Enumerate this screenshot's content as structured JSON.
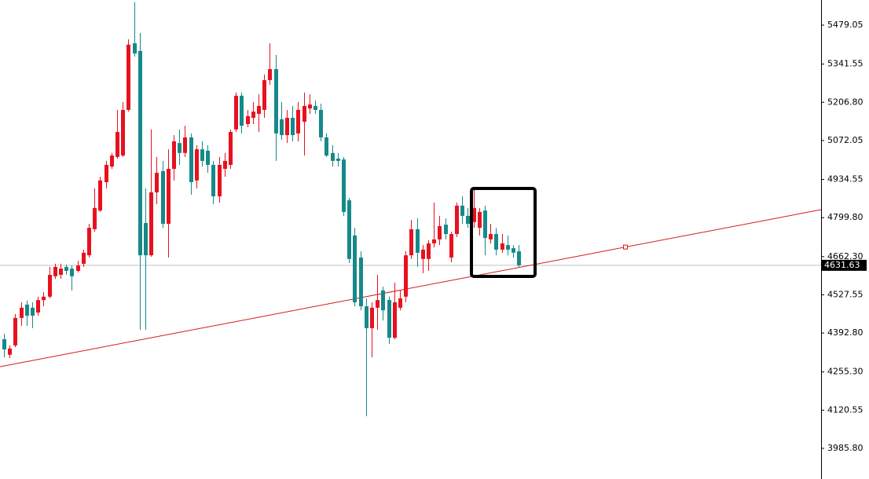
{
  "chart_data": {
    "type": "candlestick",
    "open": [
      4371,
      4316,
      4349,
      4446,
      4493,
      4482,
      4465,
      4509,
      4521,
      4593,
      4598,
      4626,
      4620,
      4612,
      4637,
      4667,
      4759,
      4825,
      4925,
      4980,
      5014,
      5019,
      5180,
      5415,
      5388,
      4781,
      4667,
      4889,
      4964,
      4778,
      4972,
      5063,
      5028,
      5083,
      4931,
      5041,
      5036,
      4986,
      4875,
      4972,
      4986,
      5111,
      5230,
      5130,
      5152,
      5166,
      5180,
      5285,
      5324,
      5147,
      5091,
      5152,
      5097,
      5138,
      5185,
      5194,
      5180,
      5083,
      5028,
      5008,
      5005,
      4861,
      4737,
      4659,
      4487,
      4410,
      4482,
      4543,
      4509,
      4376,
      4482,
      4521,
      4667,
      4759,
      4654,
      4654,
      4709,
      4723,
      4775,
      4659,
      4742,
      4842,
      4806,
      4784,
      4764,
      4825,
      4723,
      4742,
      4687,
      4703,
      4692,
      4681
    ],
    "high": [
      4390,
      4349,
      4460,
      4501,
      4507,
      4501,
      4521,
      4537,
      4626,
      4637,
      4637,
      4634,
      4631,
      4648,
      4687,
      4778,
      4903,
      4944,
      5000,
      5028,
      5180,
      5208,
      5429,
      5560,
      5451,
      4903,
      5111,
      5014,
      5000,
      5041,
      5091,
      5111,
      5124,
      5097,
      5055,
      5069,
      5055,
      5000,
      5014,
      5028,
      5111,
      5241,
      5241,
      5180,
      5208,
      5235,
      5305,
      5415,
      5374,
      5208,
      5180,
      5194,
      5208,
      5241,
      5235,
      5213,
      5202,
      5097,
      5055,
      5028,
      5014,
      4870,
      4764,
      4681,
      4515,
      4501,
      4598,
      4556,
      4521,
      4570,
      4543,
      4681,
      4792,
      4797,
      4703,
      4720,
      4853,
      4806,
      4797,
      4750,
      4853,
      4875,
      4834,
      4903,
      4834,
      4842,
      4778,
      4764,
      4742,
      4737,
      4703,
      4703
    ],
    "low": [
      4307,
      4304,
      4343,
      4418,
      4418,
      4410,
      4454,
      4487,
      4515,
      4584,
      4584,
      4598,
      4543,
      4606,
      4626,
      4659,
      4750,
      4820,
      4903,
      4972,
      5008,
      5014,
      5174,
      5368,
      4404,
      4404,
      4662,
      4847,
      4764,
      4659,
      4931,
      4986,
      5014,
      4881,
      4903,
      4980,
      4958,
      4847,
      4853,
      4944,
      4972,
      5102,
      5097,
      5119,
      5130,
      5102,
      5152,
      5269,
      5000,
      5075,
      5063,
      5069,
      5069,
      5019,
      5166,
      5166,
      5069,
      5014,
      4980,
      4980,
      4806,
      4640,
      4487,
      4473,
      4099,
      4307,
      4404,
      4437,
      4354,
      4371,
      4473,
      4501,
      4654,
      4626,
      4604,
      4612,
      4695,
      4703,
      4723,
      4642,
      4731,
      4778,
      4764,
      4764,
      4737,
      4667,
      4709,
      4667,
      4676,
      4667,
      4659,
      4626
    ],
    "close": [
      4335,
      4338,
      4446,
      4482,
      4454,
      4454,
      4509,
      4521,
      4598,
      4626,
      4620,
      4612,
      4593,
      4631,
      4676,
      4764,
      4834,
      4931,
      4986,
      5019,
      5102,
      5180,
      5410,
      5379,
      4667,
      4667,
      4889,
      4958,
      4778,
      4972,
      5069,
      5028,
      5083,
      4925,
      5041,
      5000,
      4986,
      4875,
      4986,
      5000,
      5102,
      5230,
      5124,
      5158,
      5174,
      5194,
      5285,
      5324,
      5097,
      5091,
      5152,
      5091,
      5180,
      5194,
      5199,
      5180,
      5083,
      5019,
      5000,
      5000,
      4820,
      4654,
      4501,
      4487,
      4410,
      4482,
      4509,
      4473,
      4376,
      4501,
      4515,
      4667,
      4759,
      4676,
      4687,
      4709,
      4723,
      4770,
      4742,
      4742,
      4842,
      4806,
      4778,
      4834,
      4820,
      4728,
      4742,
      4687,
      4709,
      4687,
      4676,
      4631.63
    ],
    "up_color": "#e8111f",
    "down_color": "#16898a",
    "ylim": [
      3877.7,
      5567.7
    ],
    "yticks": [
      5479.05,
      5341.55,
      {
        "value": 5206.8,
        "label": "5206.80"
      },
      5072.05,
      4934.55,
      {
        "value": 4799.8,
        "label": "4799.80"
      },
      {
        "value": 4662.3,
        "label": "4662.30"
      },
      4527.55,
      {
        "value": 4392.8,
        "label": "4392.80"
      },
      {
        "value": 4255.3,
        "label": "4255.30"
      },
      4120.55,
      {
        "value": 3985.8,
        "label": "3985.80"
      }
    ],
    "last_price": 4631.63,
    "trendline": {
      "start": 4274,
      "end": 4828,
      "color": "#d41a1a"
    }
  }
}
